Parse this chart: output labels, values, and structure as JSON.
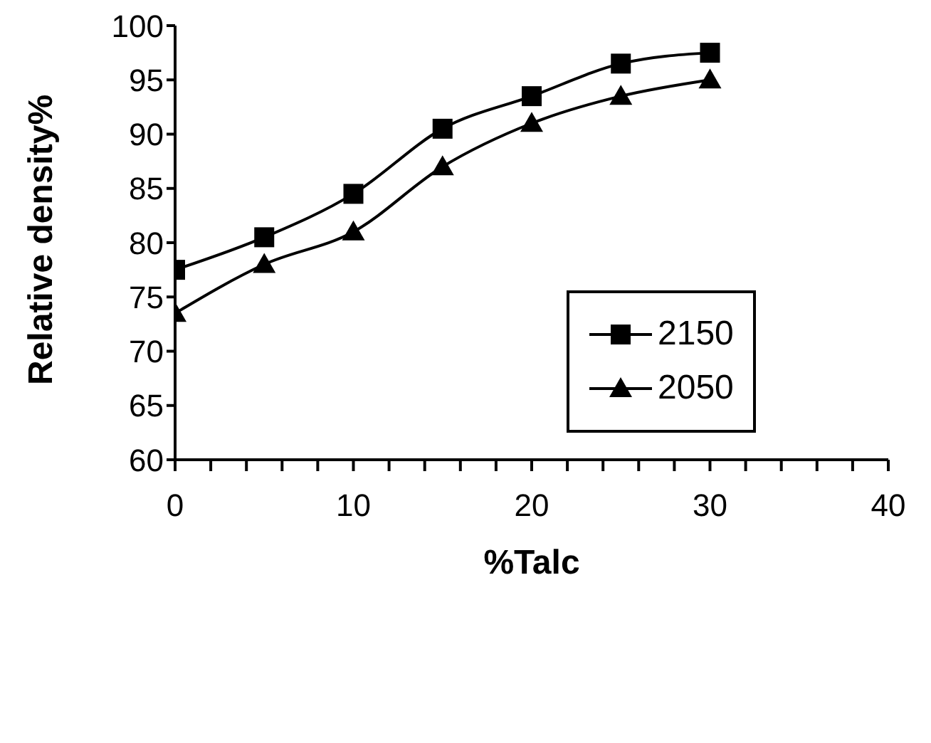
{
  "chart_data": {
    "type": "line",
    "xlabel": "%Talc",
    "ylabel": "Relative density%",
    "x": [
      0,
      5,
      10,
      15,
      20,
      25,
      30
    ],
    "series": [
      {
        "name": "2150",
        "color": "#000000",
        "marker": "square",
        "values": [
          77.5,
          80.5,
          84.5,
          90.5,
          93.5,
          96.5,
          97.5
        ]
      },
      {
        "name": "2050",
        "color": "#000000",
        "marker": "triangle",
        "values": [
          73.5,
          78,
          81,
          87,
          91,
          93.5,
          95
        ]
      }
    ],
    "xlim": [
      0,
      40
    ],
    "xticks": [
      0,
      {
        "value": 2,
        "label": null
      },
      {
        "value": 4,
        "label": null
      },
      {
        "value": 6,
        "label": null
      },
      {
        "value": 8,
        "label": null
      },
      10,
      {
        "value": 12,
        "label": null
      },
      {
        "value": 14,
        "label": null
      },
      {
        "value": 16,
        "label": null
      },
      {
        "value": 18,
        "label": null
      },
      20,
      {
        "value": 22,
        "label": null
      },
      {
        "value": 24,
        "label": null
      },
      {
        "value": 26,
        "label": null
      },
      {
        "value": 28,
        "label": null
      },
      30,
      {
        "value": 32,
        "label": null
      },
      {
        "value": 34,
        "label": null
      },
      {
        "value": 36,
        "label": null
      },
      {
        "value": 38,
        "label": null
      },
      40
    ],
    "ylim": [
      60,
      100
    ],
    "yticks": [
      60,
      65,
      70,
      75,
      80,
      85,
      90,
      95,
      100
    ],
    "grid": false,
    "legend": "right",
    "line_style": "solid"
  }
}
